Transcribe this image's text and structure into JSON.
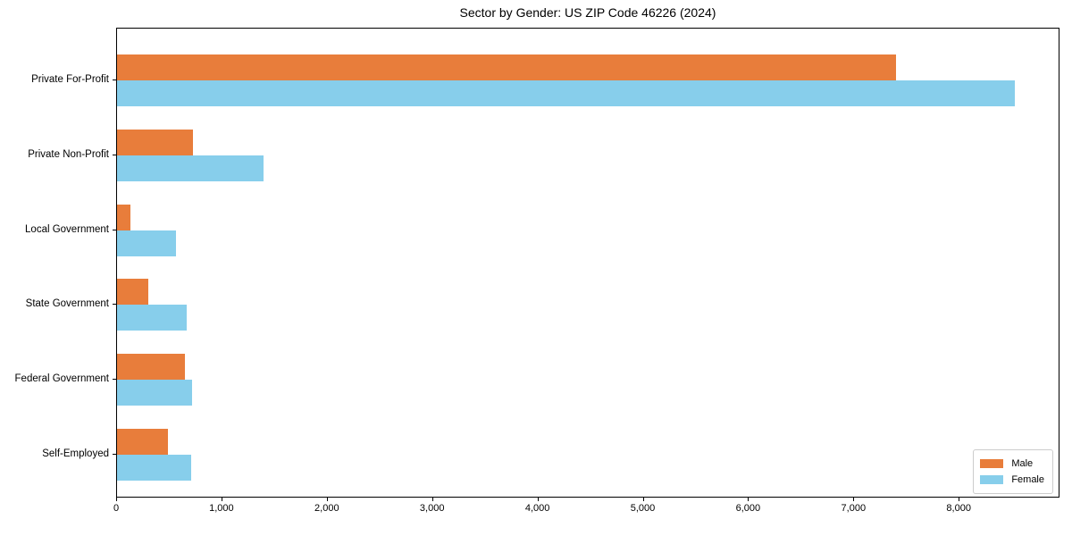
{
  "title": "Sector by Gender: US ZIP Code 46226 (2024)",
  "colors": {
    "male": "#E87D3B",
    "female": "#87CEEB",
    "axis": "#000000",
    "legend_border": "#CCCCCC",
    "background": "#FFFFFF"
  },
  "legend": {
    "position": "lower right",
    "items": [
      {
        "label": "Male",
        "color": "#E87D3B"
      },
      {
        "label": "Female",
        "color": "#87CEEB"
      }
    ]
  },
  "chart_data": {
    "type": "bar",
    "orientation": "horizontal",
    "title": "Sector by Gender: US ZIP Code 46226 (2024)",
    "categories": [
      "Private For-Profit",
      "Private Non-Profit",
      "Local Government",
      "State Government",
      "Federal Government",
      "Self-Employed"
    ],
    "series": [
      {
        "name": "Male",
        "color": "#E87D3B",
        "values": [
          7400,
          720,
          130,
          300,
          640,
          480
        ]
      },
      {
        "name": "Female",
        "color": "#87CEEB",
        "values": [
          8520,
          1390,
          560,
          660,
          710,
          700
        ]
      }
    ],
    "xlabel": "",
    "ylabel": "",
    "xlim": [
      0,
      8940
    ],
    "x_ticks": [
      0,
      1000,
      2000,
      3000,
      4000,
      5000,
      6000,
      7000,
      8000
    ],
    "x_tick_labels": [
      "0",
      "1,000",
      "2,000",
      "3,000",
      "4,000",
      "5,000",
      "6,000",
      "7,000",
      "8,000"
    ],
    "grid": false,
    "legend_position": "lower right"
  }
}
